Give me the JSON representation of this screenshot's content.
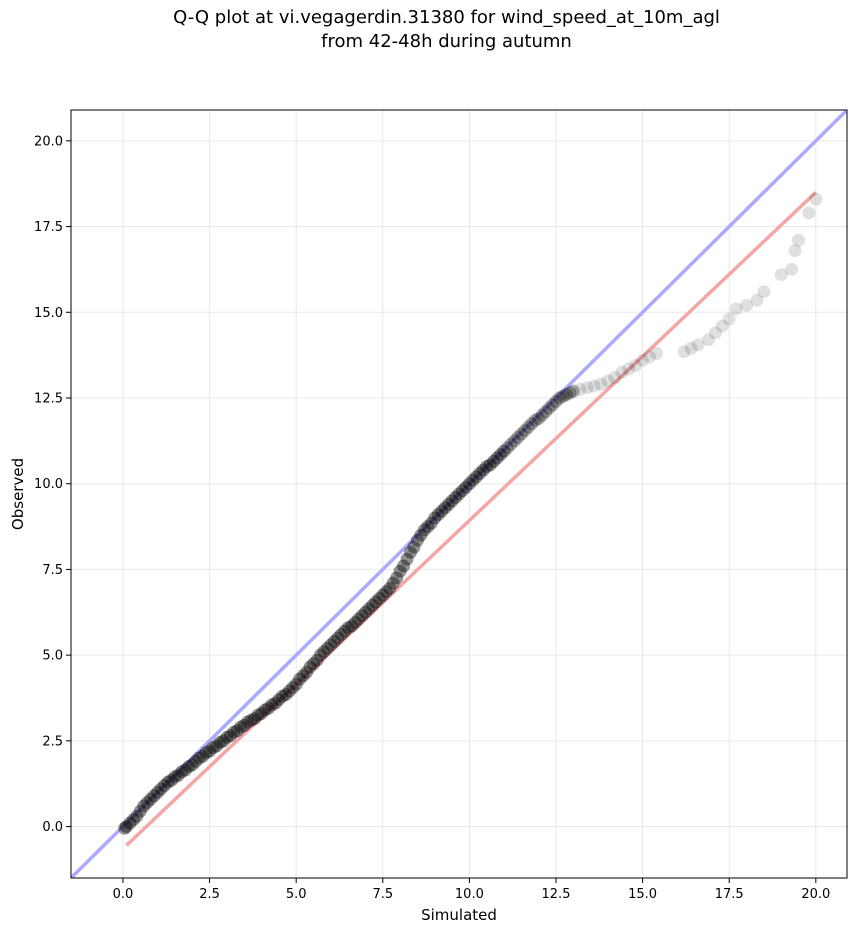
{
  "chart_data": {
    "type": "scatter",
    "title": [
      "Q-Q plot at vi.vegagerdin.31380 for wind_speed_at_10m_agl",
      "from 42-48h during autumn"
    ],
    "xlabel": "Simulated",
    "ylabel": "Observed",
    "xlim": [
      -1.5,
      20.9
    ],
    "ylim": [
      -1.5,
      20.9
    ],
    "x_ticks": [
      0.0,
      2.5,
      5.0,
      7.5,
      10.0,
      12.5,
      15.0,
      17.5,
      20.0
    ],
    "y_ticks": [
      0.0,
      2.5,
      5.0,
      7.5,
      10.0,
      12.5,
      15.0,
      17.5,
      20.0
    ],
    "x_tick_labels": [
      "0.0",
      "2.5",
      "5.0",
      "7.5",
      "10.0",
      "12.5",
      "15.0",
      "17.5",
      "20.0"
    ],
    "y_tick_labels": [
      "0.0",
      "2.5",
      "5.0",
      "7.5",
      "10.0",
      "12.5",
      "15.0",
      "17.5",
      "20.0"
    ],
    "grid": true,
    "reference_line": {
      "description": "1:1 line",
      "slope": 1,
      "intercept": 0,
      "color": "#aaaaff"
    },
    "fit_line": {
      "x": [
        0.1,
        20.0
      ],
      "y": [
        -0.55,
        18.5
      ],
      "color": "#f4a6a6"
    },
    "series": [
      {
        "marker_color": "#000000",
        "x": [
          0.05,
          0.1,
          0.2,
          0.3,
          0.4,
          0.5,
          0.6,
          0.7,
          0.8,
          0.9,
          1.0,
          1.1,
          1.2,
          1.3,
          1.4,
          1.5,
          1.6,
          1.7,
          1.8,
          1.9,
          2.0,
          2.1,
          2.2,
          2.3,
          2.4,
          2.5,
          2.6,
          2.7,
          2.8,
          2.9,
          3.0,
          3.1,
          3.2,
          3.3,
          3.4,
          3.5,
          3.6,
          3.7,
          3.8,
          3.9,
          4.0,
          4.1,
          4.2,
          4.3,
          4.4,
          4.5,
          4.6,
          4.7,
          4.8,
          4.9,
          5.0,
          5.1,
          5.2,
          5.3,
          5.4,
          5.5,
          5.6,
          5.7,
          5.8,
          5.9,
          6.0,
          6.1,
          6.2,
          6.3,
          6.4,
          6.5,
          6.6,
          6.7,
          6.8,
          6.9,
          7.0,
          7.1,
          7.2,
          7.3,
          7.4,
          7.5,
          7.6,
          7.7,
          7.8,
          7.9,
          8.0,
          8.1,
          8.2,
          8.3,
          8.4,
          8.5,
          8.6,
          8.7,
          8.8,
          8.9,
          9.0,
          9.1,
          9.2,
          9.3,
          9.4,
          9.5,
          9.6,
          9.7,
          9.8,
          9.9,
          10.0,
          10.1,
          10.2,
          10.3,
          10.4,
          10.5,
          10.6,
          10.7,
          10.8,
          10.9,
          11.0,
          11.1,
          11.2,
          11.3,
          11.4,
          11.5,
          11.6,
          11.7,
          11.8,
          11.9,
          12.0,
          12.1,
          12.2,
          12.3,
          12.4,
          12.5,
          12.6,
          12.7,
          12.8,
          12.9,
          13.0,
          13.2,
          13.4,
          13.6,
          13.8,
          14.0,
          14.2,
          14.4,
          14.6,
          14.8,
          15.0,
          15.2,
          15.4,
          16.2,
          16.4,
          16.6,
          16.9,
          17.1,
          17.3,
          17.5,
          17.7,
          18.0,
          18.3,
          18.5,
          19.0,
          19.3,
          19.4,
          19.5,
          19.8,
          20.0
        ],
        "y": [
          -0.05,
          0.0,
          0.1,
          0.2,
          0.3,
          0.45,
          0.6,
          0.7,
          0.8,
          0.9,
          1.0,
          1.1,
          1.2,
          1.3,
          1.35,
          1.45,
          1.5,
          1.6,
          1.65,
          1.75,
          1.8,
          1.9,
          2.0,
          2.05,
          2.15,
          2.2,
          2.3,
          2.35,
          2.45,
          2.5,
          2.6,
          2.65,
          2.75,
          2.8,
          2.9,
          2.95,
          3.05,
          3.1,
          3.15,
          3.25,
          3.3,
          3.4,
          3.45,
          3.55,
          3.6,
          3.7,
          3.8,
          3.85,
          3.95,
          4.05,
          4.15,
          4.3,
          4.4,
          4.5,
          4.65,
          4.75,
          4.85,
          5.0,
          5.1,
          5.2,
          5.3,
          5.4,
          5.5,
          5.6,
          5.7,
          5.8,
          5.85,
          5.95,
          6.05,
          6.15,
          6.25,
          6.35,
          6.45,
          6.55,
          6.65,
          6.75,
          6.85,
          6.95,
          7.1,
          7.25,
          7.45,
          7.6,
          7.8,
          8.0,
          8.15,
          8.35,
          8.5,
          8.65,
          8.75,
          8.85,
          9.0,
          9.1,
          9.2,
          9.3,
          9.4,
          9.5,
          9.6,
          9.7,
          9.8,
          9.9,
          10.0,
          10.1,
          10.2,
          10.3,
          10.4,
          10.5,
          10.55,
          10.65,
          10.75,
          10.85,
          10.95,
          11.05,
          11.15,
          11.25,
          11.35,
          11.45,
          11.55,
          11.65,
          11.75,
          11.85,
          11.9,
          12.0,
          12.1,
          12.2,
          12.3,
          12.4,
          12.5,
          12.55,
          12.6,
          12.65,
          12.7,
          12.75,
          12.8,
          12.85,
          12.9,
          13.0,
          13.1,
          13.25,
          13.35,
          13.45,
          13.6,
          13.7,
          13.8,
          13.85,
          13.95,
          14.05,
          14.2,
          14.4,
          14.6,
          14.8,
          15.1,
          15.2,
          15.35,
          15.6,
          16.1,
          16.25,
          16.8,
          17.1,
          17.9,
          18.3
        ]
      }
    ]
  }
}
